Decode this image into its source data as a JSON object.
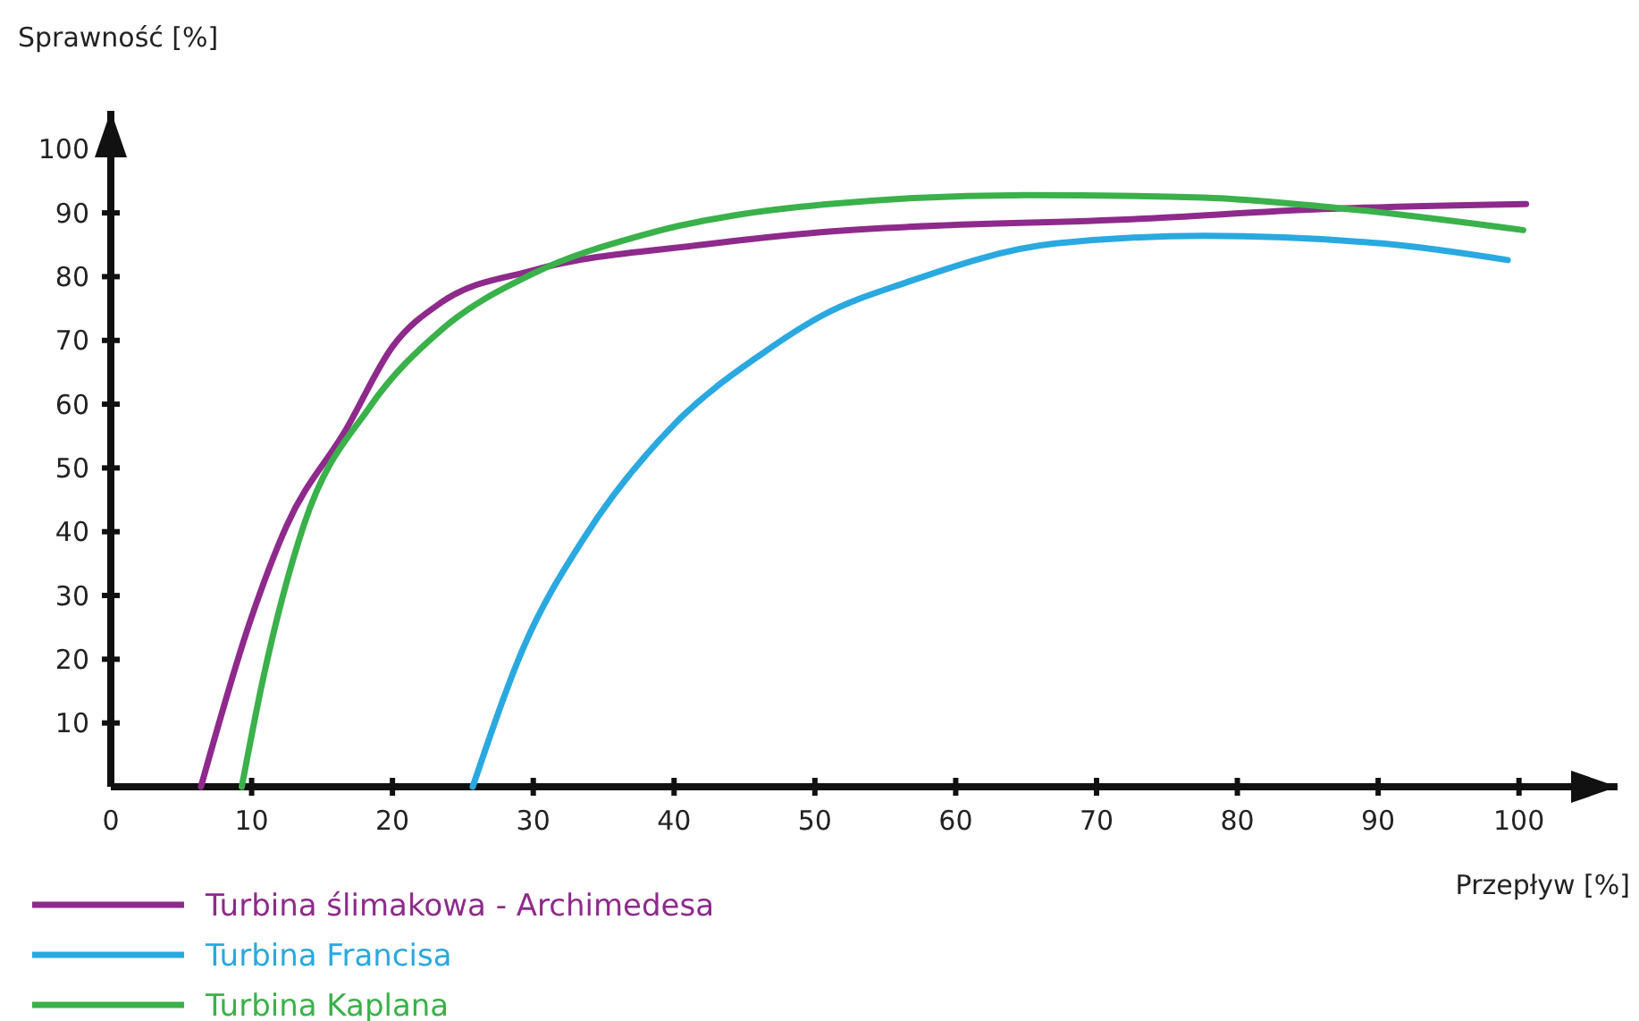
{
  "chart_data": {
    "type": "line",
    "xlabel": "Przepływ [%]",
    "ylabel": "Sprawność [%]",
    "xlim": [
      0,
      107
    ],
    "ylim": [
      0,
      106
    ],
    "xticks": [
      {
        "value": 0,
        "label": "0"
      },
      10,
      20,
      30,
      40,
      50,
      60,
      70,
      80,
      90,
      100
    ],
    "yticks": [
      10,
      20,
      30,
      40,
      50,
      60,
      70,
      80,
      90,
      100
    ],
    "grid": false,
    "legend": "bottom left",
    "marker": "none",
    "line_style": "solid",
    "series": [
      {
        "name": "Turbina ślimakowa - Archimedesa",
        "color": "#8e2a8b",
        "x": [
          6.4,
          9.9,
          12.5,
          16.7,
          20,
          23.5,
          30,
          42,
          50.6,
          73.4,
          86.1,
          100.5
        ],
        "values": [
          0,
          26,
          41,
          56,
          69,
          76,
          81,
          85,
          87,
          89.1,
          90.6,
          91.4
        ]
      },
      {
        "name": "Turbina Francisa",
        "color": "#29a9e0",
        "x": [
          25.7,
          29.4,
          33.6,
          40,
          46.3,
          50.6,
          56.5,
          67.1,
          77.6,
          90.3,
          99.2
        ],
        "values": [
          0,
          22.3,
          39,
          56.8,
          68,
          74,
          79.1,
          85.2,
          86.4,
          85.2,
          82.6
        ]
      },
      {
        "name": "Turbina Kaplana",
        "color": "#3ab14a",
        "x": [
          9.3,
          10.8,
          13.7,
          18.4,
          23.5,
          30,
          37.9,
          50.6,
          65,
          77.6,
          87,
          100.3
        ],
        "values": [
          0,
          16.8,
          41,
          59.6,
          71.7,
          80.5,
          86.6,
          91.3,
          92.8,
          92.4,
          90.8,
          87.3
        ]
      }
    ]
  }
}
